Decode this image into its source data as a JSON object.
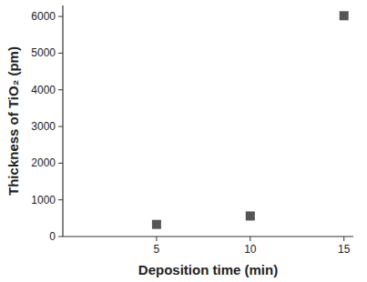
{
  "chart_data": {
    "type": "scatter",
    "x_label": "Deposition time (min)",
    "y_label": "Thickness of TiO₂ (pm)",
    "x": [
      5,
      10,
      15
    ],
    "values": [
      330,
      560,
      6020
    ],
    "color": "#555555",
    "marker": "square",
    "xlim": [
      0,
      15.5
    ],
    "ylim": [
      0,
      6300
    ],
    "xticks": [
      5,
      10,
      15
    ],
    "yticks": [
      0,
      1000,
      2000,
      3000,
      4000,
      5000,
      6000
    ],
    "grid": false
  }
}
